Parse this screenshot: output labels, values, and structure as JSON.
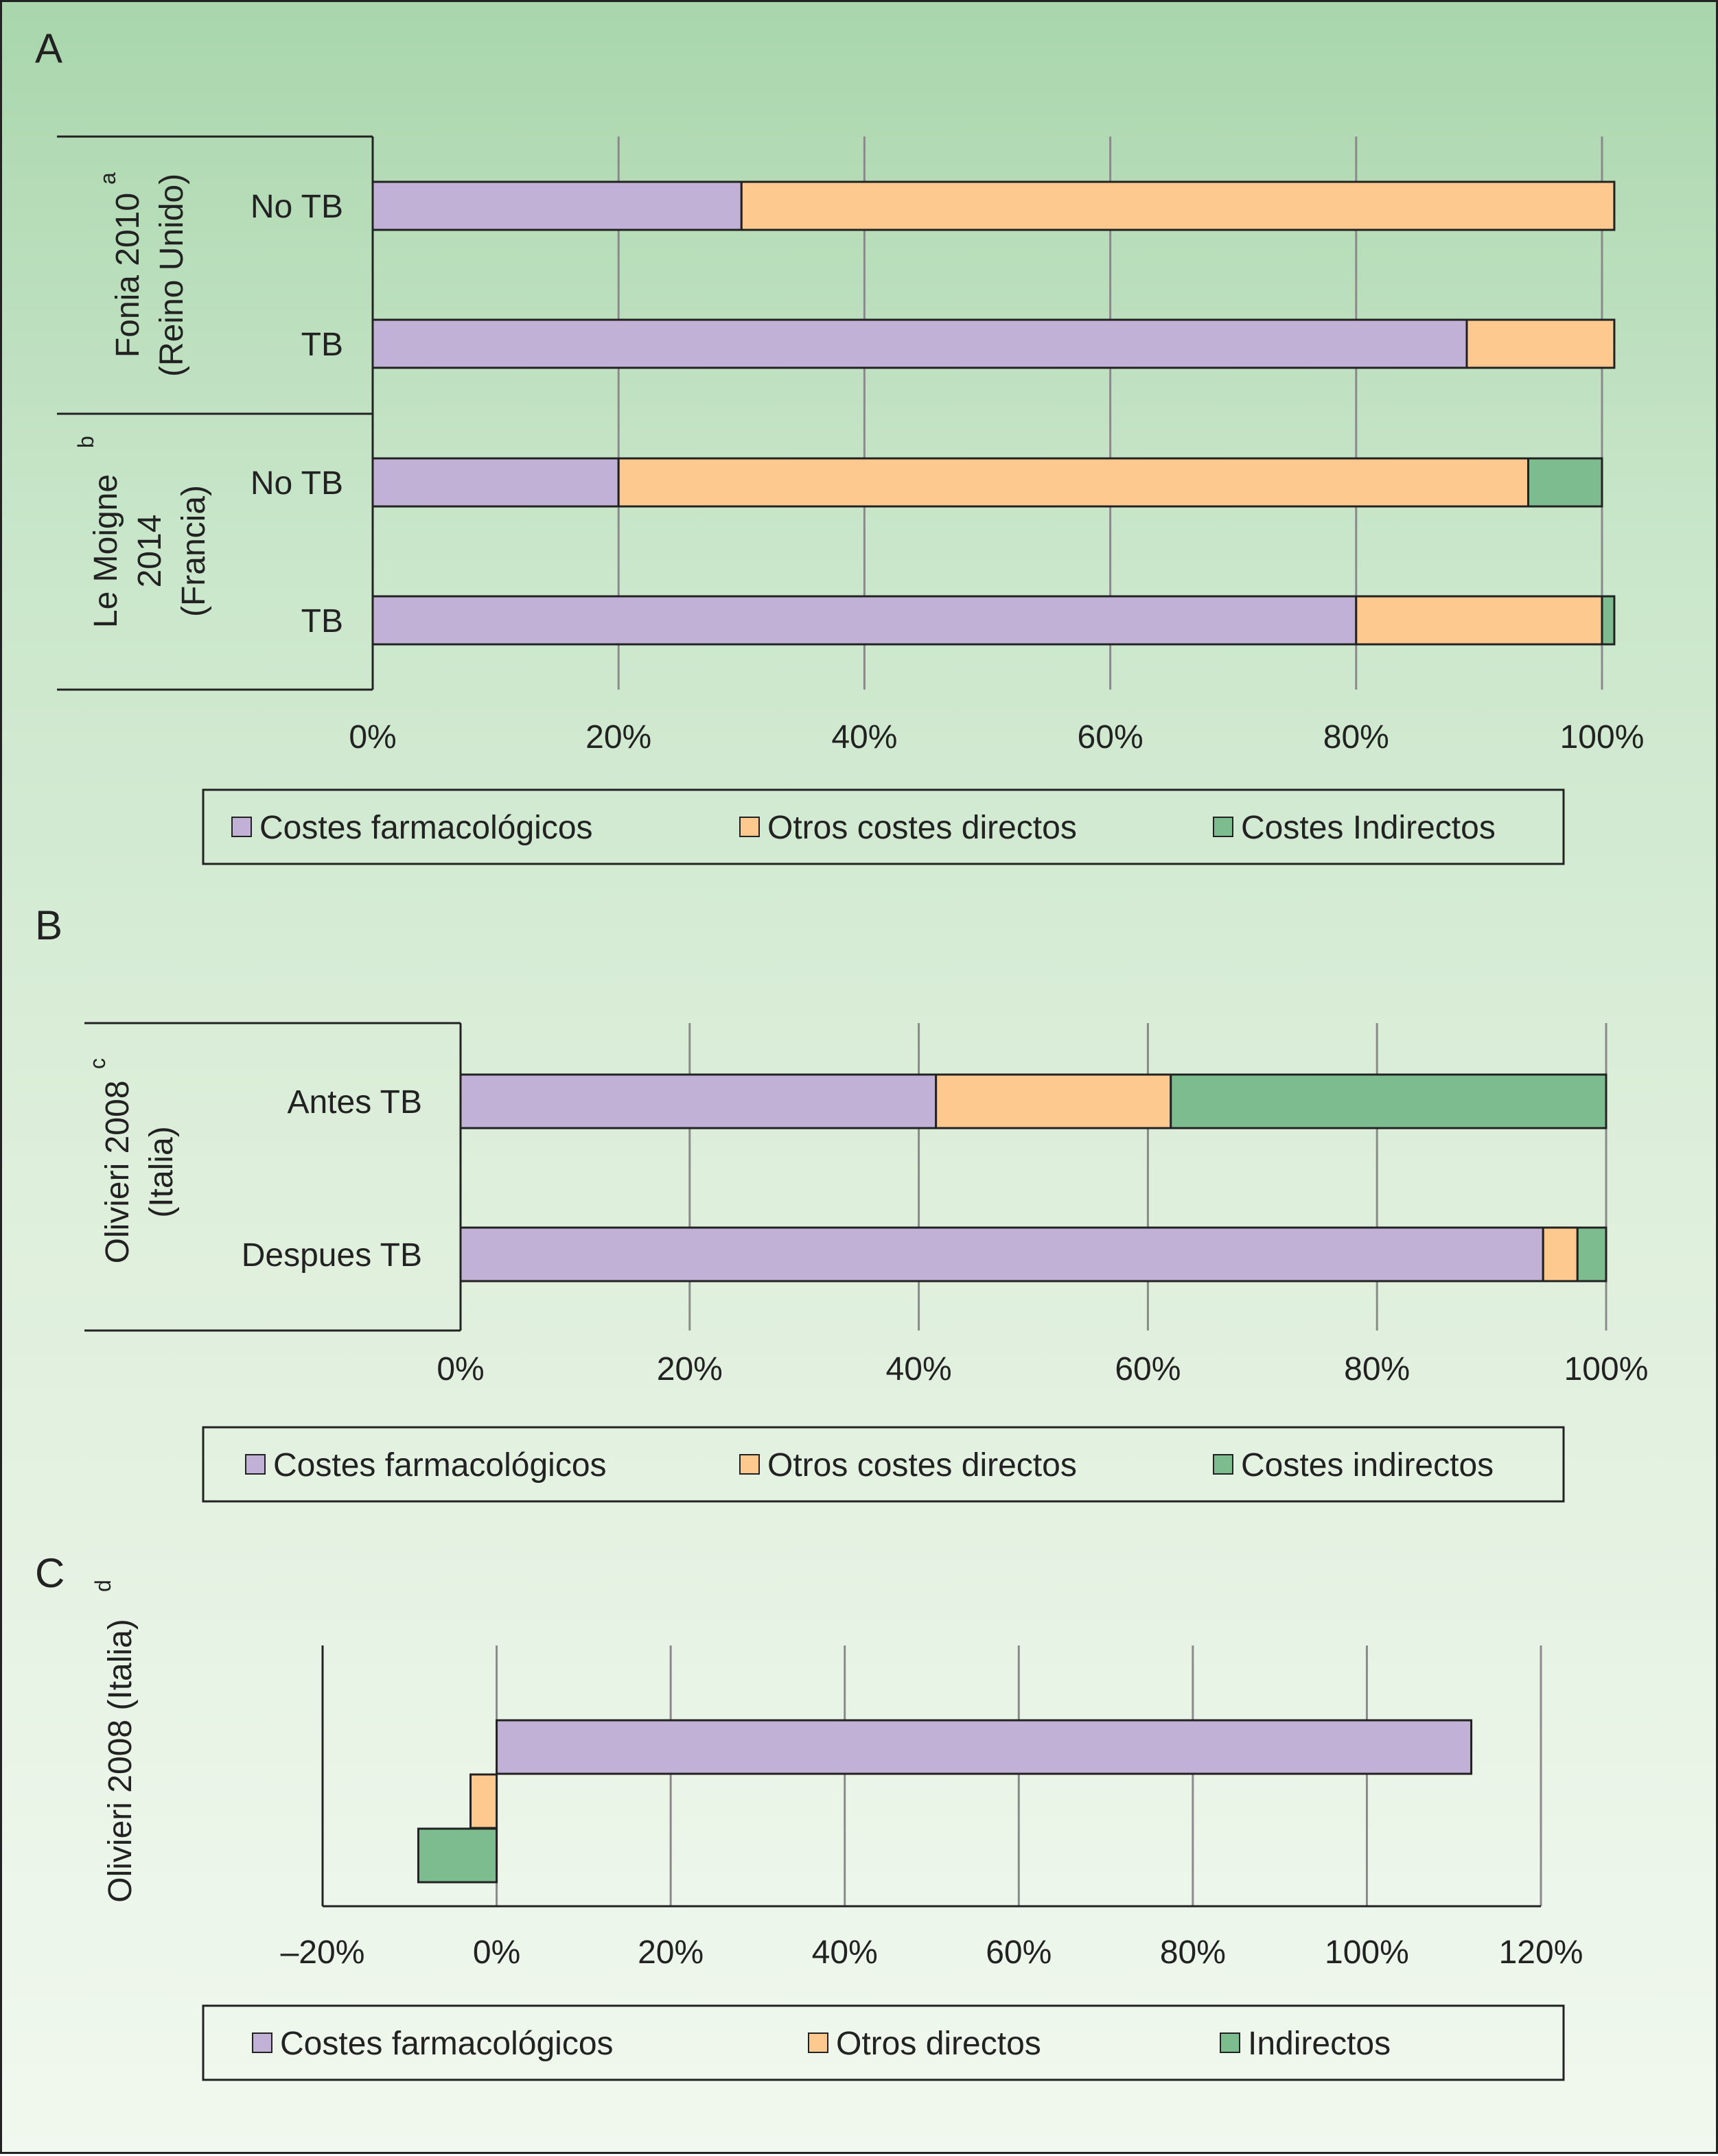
{
  "colors": {
    "farmacologicos": "#c2b1d6",
    "otros": "#fec98e",
    "indirectos": "#7cbc8f",
    "grid": "#8a8a8a",
    "stroke": "#222222"
  },
  "chart_data": [
    {
      "panel": "A",
      "type": "bar",
      "orientation": "horizontal",
      "stacked": true,
      "groups": [
        {
          "label_lines": [
            "Fonia 2010",
            "(Reino Unido)"
          ],
          "superscript": "a",
          "rows": [
            "No TB",
            "TB"
          ]
        },
        {
          "label_lines": [
            "Le Moigne",
            "2014",
            "(Francia)"
          ],
          "superscript": "b",
          "rows": [
            "No TB",
            "TB"
          ]
        }
      ],
      "categories": [
        "No TB",
        "TB",
        "No TB",
        "TB"
      ],
      "series": [
        {
          "name": "Costes farmacológicos",
          "values": [
            30,
            89,
            20,
            80
          ]
        },
        {
          "name": "Otros costes directos",
          "values": [
            71,
            12,
            74,
            20
          ]
        },
        {
          "name": "Costes Indirectos",
          "values": [
            0,
            0,
            6,
            1
          ]
        }
      ],
      "xlim": [
        0,
        100
      ],
      "xticks": [
        "0%",
        "20%",
        "40%",
        "60%",
        "80%",
        "100%"
      ],
      "grid": "vertical",
      "legend": [
        "Costes farmacológicos",
        "Otros costes directos",
        "Costes Indirectos"
      ],
      "legend_position": "bottom"
    },
    {
      "panel": "B",
      "type": "bar",
      "orientation": "horizontal",
      "stacked": true,
      "groups": [
        {
          "label_lines": [
            "Olivieri 2008",
            "(Italia)"
          ],
          "superscript": "c",
          "rows": [
            "Antes TB",
            "Despues TB"
          ]
        }
      ],
      "categories": [
        "Antes TB",
        "Despues TB"
      ],
      "series": [
        {
          "name": "Costes farmacológicos",
          "values": [
            41.5,
            94.5
          ]
        },
        {
          "name": "Otros costes directos",
          "values": [
            20.5,
            3
          ]
        },
        {
          "name": "Costes indirectos",
          "values": [
            38,
            2.5
          ]
        }
      ],
      "xlim": [
        0,
        100
      ],
      "xticks": [
        "0%",
        "20%",
        "40%",
        "60%",
        "80%",
        "100%"
      ],
      "grid": "vertical",
      "legend": [
        "Costes farmacológicos",
        "Otros costes directos",
        "Costes indirectos"
      ],
      "legend_position": "bottom"
    },
    {
      "panel": "C",
      "type": "bar",
      "orientation": "horizontal",
      "stacked": false,
      "ylabel": "Olivieri 2008 (Italia)",
      "ylabel_superscript": "d",
      "series": [
        {
          "name": "Costes farmacológicos",
          "value": 112
        },
        {
          "name": "Otros directos",
          "value": -3
        },
        {
          "name": "Indirectos",
          "value": -9
        }
      ],
      "xlim": [
        -20,
        120
      ],
      "xticks": [
        "–20%",
        "0%",
        "20%",
        "40%",
        "60%",
        "80%",
        "100%",
        "120%"
      ],
      "grid": "vertical",
      "legend": [
        "Costes farmacológicos",
        "Otros directos",
        "Indirectos"
      ],
      "legend_position": "bottom"
    }
  ]
}
